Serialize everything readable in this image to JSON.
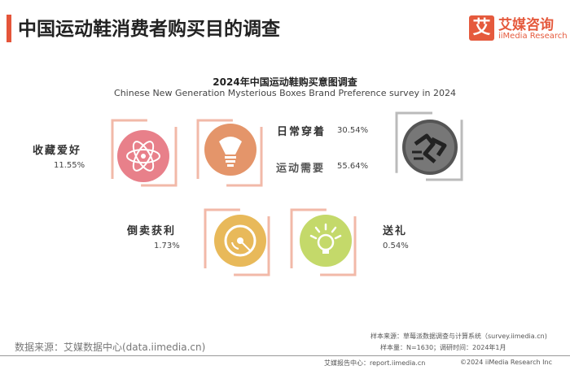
{
  "header": {
    "title": "中国运动鞋消费者购买目的调查",
    "logo_mark": "艾",
    "logo_name": "艾媒咨询",
    "logo_en": "iiMedia Research"
  },
  "chart_data": {
    "type": "icon-infographic",
    "title": "2024年中国运动鞋购买意图调查",
    "subtitle": "Chinese New Generation Mysterious Boxes Brand Preference survey in 2024",
    "unit": "%",
    "categories": [
      {
        "name": "收藏爱好",
        "label": "11.55%",
        "value": 11.55,
        "color": "#e8808a",
        "icon": "atom-icon"
      },
      {
        "name": "日常穿着",
        "label": "30.54%",
        "value": 30.54,
        "color": "#e4956a",
        "icon": "lightbulb-icon"
      },
      {
        "name": "运动需要",
        "label": "55.64%",
        "value": 55.64,
        "color": "#555555",
        "icon": "running-icon"
      },
      {
        "name": "倒卖获利",
        "label": "1.73%",
        "value": 1.73,
        "color": "#e8b95a",
        "icon": "disc-icon"
      },
      {
        "name": "送礼",
        "label": "0.54%",
        "value": 0.54,
        "color": "#c4d96a",
        "icon": "bulb-rays-icon"
      }
    ]
  },
  "footer": {
    "source": "数据来源：艾媒数据中心(data.iimedia.cn)",
    "sample_source": "样本来源：草莓派数据调查与计算系统（survey.iimedia.cn)",
    "sample_size": "样本量：N=1630；调研时间：2024年1月",
    "report_center": "艾媒报告中心：report.iimedia.cn",
    "copyright": "©2024 iiMedia Research Inc"
  },
  "colors": {
    "brand": "#e55a3d",
    "frame": "#f2b9a8"
  }
}
